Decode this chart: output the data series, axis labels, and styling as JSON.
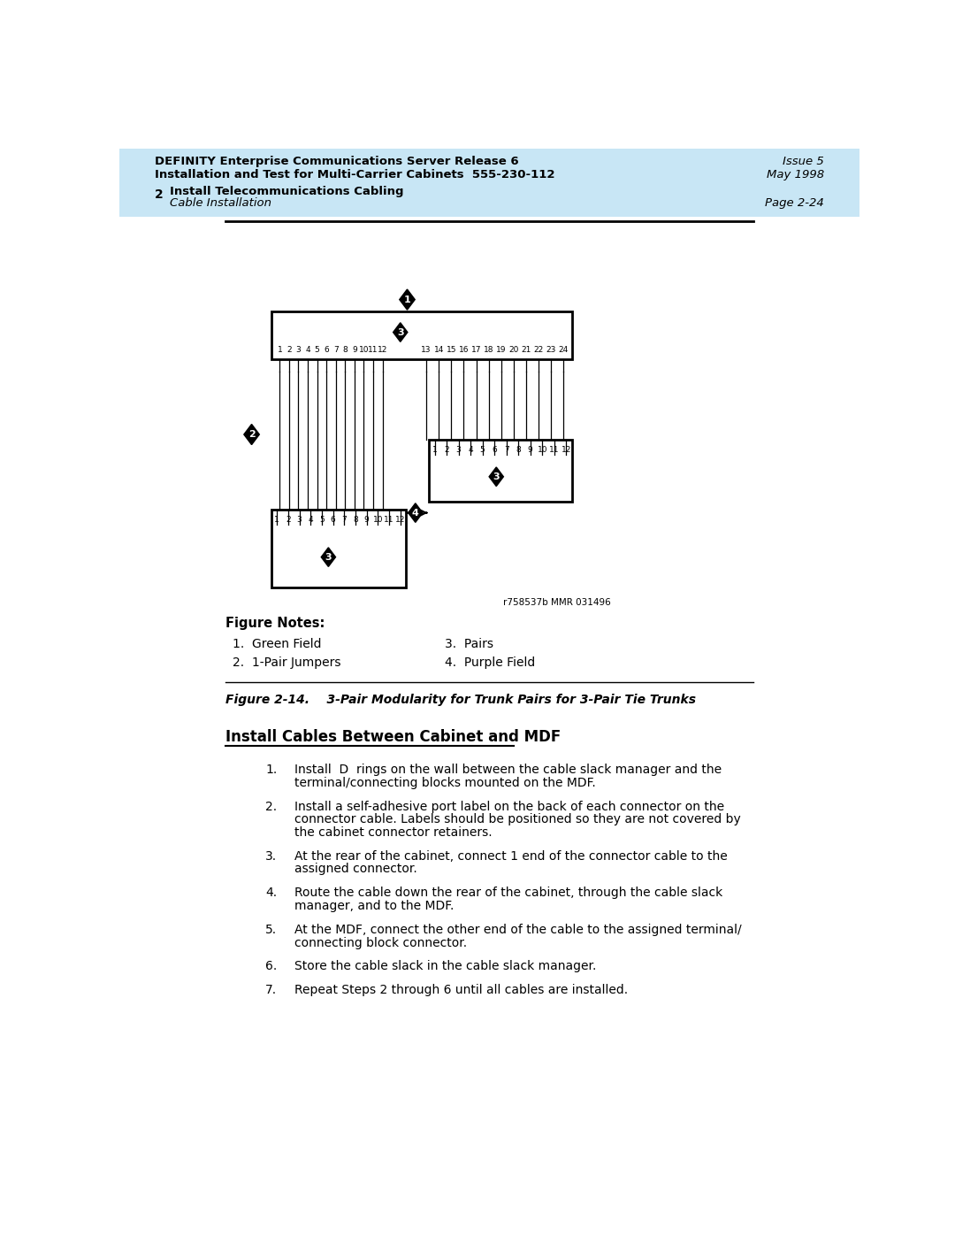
{
  "header_bg": "#c8e6f5",
  "header_line1": "DEFINITY Enterprise Communications Server Release 6",
  "header_line2": "Installation and Test for Multi-Carrier Cabinets  555-230-112",
  "header_right1": "Issue 5",
  "header_right2": "May 1998",
  "subheader_num": "2",
  "subheader_text1": "Install Telecommunications Cabling",
  "subheader_text2": "Cable Installation",
  "subheader_page": "Page 2-24",
  "figure_caption": "Figure 2-14.    3-Pair Modularity for Trunk Pairs for 3-Pair Tie Trunks",
  "figure_notes_title": "Figure Notes:",
  "figure_notes": [
    [
      "1.  Green Field",
      "3.  Pairs"
    ],
    [
      "2.  1-Pair Jumpers",
      "4.  Purple Field"
    ]
  ],
  "section_title": "Install Cables Between Cabinet and MDF",
  "steps": [
    "Install  D  rings on the wall between the cable slack manager and the\nterminal/connecting blocks mounted on the MDF.",
    "Install a self-adhesive port label on the back of each connector on the\nconnector cable. Labels should be positioned so they are not covered by\nthe cabinet connector retainers.",
    "At the rear of the cabinet, connect 1 end of the connector cable to the\nassigned connector.",
    "Route the cable down the rear of the cabinet, through the cable slack\nmanager, and to the MDF.",
    "At the MDF, connect the other end of the cable to the assigned terminal/\nconnecting block connector.",
    "Store the cable slack in the cable slack manager.",
    "Repeat Steps 2 through 6 until all cables are installed."
  ],
  "ref_text": "r758537b MMR 031496",
  "left_nums": [
    "1",
    "2",
    "3",
    "4",
    "5",
    "6",
    "7",
    "8",
    "9",
    "10",
    "11",
    "12"
  ],
  "right_nums": [
    "13",
    "14",
    "15",
    "16",
    "17",
    "18",
    "19",
    "20",
    "21",
    "22",
    "23",
    "24"
  ],
  "box_nums_12": [
    "1",
    "2",
    "3",
    "4",
    "5",
    "6",
    "7",
    "8",
    "9",
    "10",
    "11",
    "12"
  ]
}
